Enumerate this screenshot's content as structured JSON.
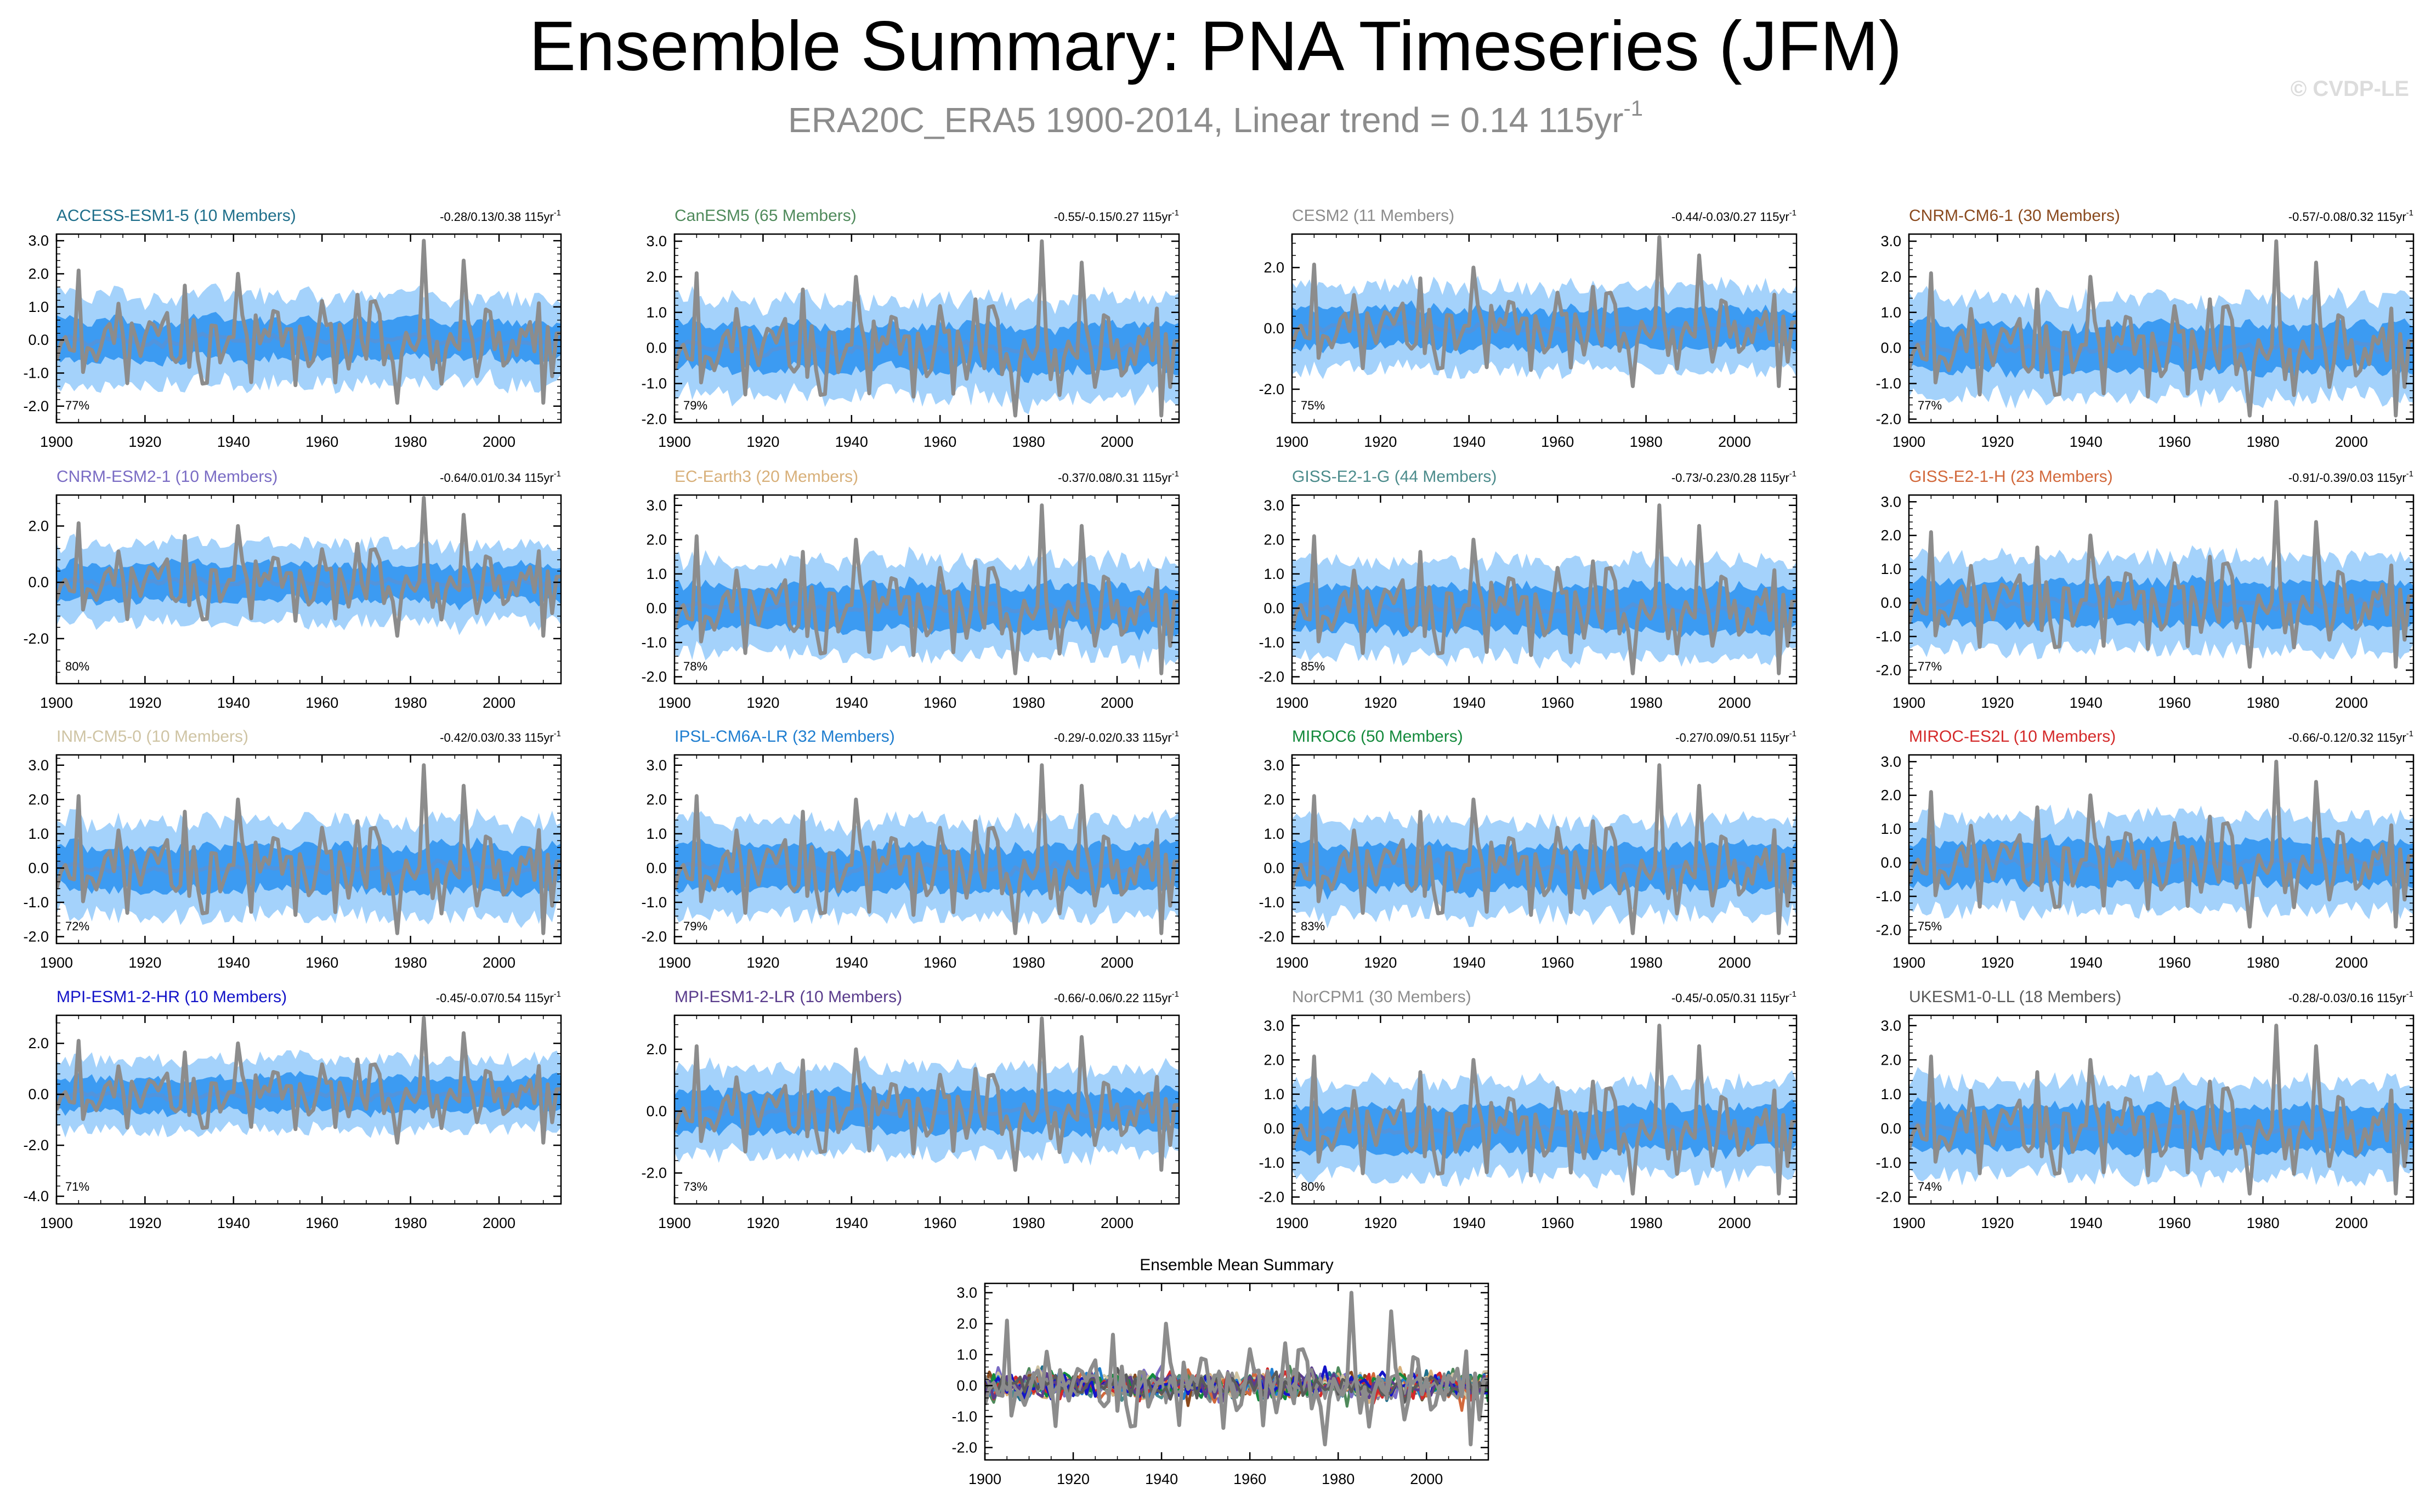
{
  "header": {
    "title": "Ensemble Summary: PNA Timeseries (JFM)",
    "subtitle_main": "ERA20C_ERA5 1900-2014, Linear trend = 0.14 115yr",
    "subtitle_sup": "-1",
    "credit": "© CVDP-LE"
  },
  "colors": {
    "obs": "#8c8c8c",
    "spread_outer": "#a4d2fb",
    "spread_inner": "#3c9bf2",
    "ensemble_mean": "#5294dc"
  },
  "chart_data": [
    {
      "type": "area",
      "model": "ACCESS-ESM1-5",
      "members": "(10 Members)",
      "name_color": "#1f6f8b",
      "trend_text": "-0.28/0.13/0.38 115yr",
      "trend_sup": "-1",
      "pct": "77%",
      "ylim": [
        -2.5,
        3.2
      ],
      "yticks": [
        3.0,
        2.0,
        1.0,
        0.0,
        -1.0,
        -2.0
      ],
      "ytick_labels": [
        "3.0",
        "2.0",
        "1.0",
        "0.0",
        "-1.0",
        "-2.0"
      ],
      "xlim": [
        1900,
        2014
      ],
      "xticks": [
        1900,
        1920,
        1940,
        1960,
        1980,
        2000
      ],
      "xtick_labels": [
        "1900",
        "1920",
        "1940",
        "1960",
        "1980",
        "2000"
      ],
      "inner": 0.5,
      "outer": 1.25
    },
    {
      "type": "area",
      "model": "CanESM5",
      "members": "(65 Members)",
      "name_color": "#4f8a5b",
      "trend_text": "-0.55/-0.15/0.27 115yr",
      "trend_sup": "-1",
      "pct": "79%",
      "ylim": [
        -2.1,
        3.2
      ],
      "yticks": [
        3.0,
        2.0,
        1.0,
        0.0,
        -1.0,
        -2.0
      ],
      "ytick_labels": [
        "3.0",
        "2.0",
        "1.0",
        "0.0",
        "-1.0",
        "-2.0"
      ],
      "xlim": [
        1900,
        2014
      ],
      "xticks": [
        1900,
        1920,
        1940,
        1960,
        1980,
        2000
      ],
      "xtick_labels": [
        "1900",
        "1920",
        "1940",
        "1960",
        "1980",
        "2000"
      ],
      "inner": 0.55,
      "outer": 1.3
    },
    {
      "type": "area",
      "model": "CESM2",
      "members": "(11 Members)",
      "name_color": "#8c8c8c",
      "trend_text": "-0.44/-0.03/0.27 115yr",
      "trend_sup": "-1",
      "pct": "75%",
      "ylim": [
        -3.1,
        3.1
      ],
      "yticks": [
        2.0,
        0.0,
        -2.0
      ],
      "ytick_labels": [
        "2.0",
        "0.0",
        "-2.0"
      ],
      "xlim": [
        1900,
        2014
      ],
      "xticks": [
        1900,
        1920,
        1940,
        1960,
        1980,
        2000
      ],
      "xtick_labels": [
        "1900",
        "1920",
        "1940",
        "1960",
        "1980",
        "2000"
      ],
      "inner": 0.55,
      "outer": 1.3
    },
    {
      "type": "area",
      "model": "CNRM-CM6-1",
      "members": "(30 Members)",
      "name_color": "#8a4a1e",
      "trend_text": "-0.57/-0.08/0.32 115yr",
      "trend_sup": "-1",
      "pct": "77%",
      "ylim": [
        -2.1,
        3.2
      ],
      "yticks": [
        3.0,
        2.0,
        1.0,
        0.0,
        -1.0,
        -2.0
      ],
      "ytick_labels": [
        "3.0",
        "2.0",
        "1.0",
        "0.0",
        "-1.0",
        "-2.0"
      ],
      "xlim": [
        1900,
        2014
      ],
      "xticks": [
        1900,
        1920,
        1940,
        1960,
        1980,
        2000
      ],
      "xtick_labels": [
        "1900",
        "1920",
        "1940",
        "1960",
        "1980",
        "2000"
      ],
      "inner": 0.55,
      "outer": 1.3
    },
    {
      "type": "area",
      "model": "CNRM-ESM2-1",
      "members": "(10 Members)",
      "name_color": "#7a6cc4",
      "trend_text": "-0.64/0.01/0.34 115yr",
      "trend_sup": "-1",
      "pct": "80%",
      "ylim": [
        -3.6,
        3.1
      ],
      "yticks": [
        2.0,
        0.0,
        -2.0
      ],
      "ytick_labels": [
        "2.0",
        "0.0",
        "-2.0"
      ],
      "xlim": [
        1900,
        2014
      ],
      "xticks": [
        1900,
        1920,
        1940,
        1960,
        1980,
        2000
      ],
      "xtick_labels": [
        "1900",
        "1920",
        "1940",
        "1960",
        "1980",
        "2000"
      ],
      "inner": 0.55,
      "outer": 1.3
    },
    {
      "type": "area",
      "model": "EC-Earth3",
      "members": "(20 Members)",
      "name_color": "#d8b07a",
      "trend_text": "-0.37/0.08/0.31 115yr",
      "trend_sup": "-1",
      "pct": "78%",
      "ylim": [
        -2.2,
        3.3
      ],
      "yticks": [
        3.0,
        2.0,
        1.0,
        0.0,
        -1.0,
        -2.0
      ],
      "ytick_labels": [
        "3.0",
        "2.0",
        "1.0",
        "0.0",
        "-1.0",
        "-2.0"
      ],
      "xlim": [
        1900,
        2014
      ],
      "xticks": [
        1900,
        1920,
        1940,
        1960,
        1980,
        2000
      ],
      "xtick_labels": [
        "1900",
        "1920",
        "1940",
        "1960",
        "1980",
        "2000"
      ],
      "inner": 0.55,
      "outer": 1.3
    },
    {
      "type": "area",
      "model": "GISS-E2-1-G",
      "members": "(44 Members)",
      "name_color": "#4c8c8c",
      "trend_text": "-0.73/-0.23/0.28 115yr",
      "trend_sup": "-1",
      "pct": "85%",
      "ylim": [
        -2.2,
        3.3
      ],
      "yticks": [
        3.0,
        2.0,
        1.0,
        0.0,
        -1.0,
        -2.0
      ],
      "ytick_labels": [
        "3.0",
        "2.0",
        "1.0",
        "0.0",
        "-1.0",
        "-2.0"
      ],
      "xlim": [
        1900,
        2014
      ],
      "xticks": [
        1900,
        1920,
        1940,
        1960,
        1980,
        2000
      ],
      "xtick_labels": [
        "1900",
        "1920",
        "1940",
        "1960",
        "1980",
        "2000"
      ],
      "inner": 0.55,
      "outer": 1.3
    },
    {
      "type": "area",
      "model": "GISS-E2-1-H",
      "members": "(23 Members)",
      "name_color": "#d2693c",
      "trend_text": "-0.91/-0.39/0.03 115yr",
      "trend_sup": "-1",
      "pct": "77%",
      "ylim": [
        -2.4,
        3.2
      ],
      "yticks": [
        3.0,
        2.0,
        1.0,
        0.0,
        -1.0,
        -2.0
      ],
      "ytick_labels": [
        "3.0",
        "2.0",
        "1.0",
        "0.0",
        "-1.0",
        "-2.0"
      ],
      "xlim": [
        1900,
        2014
      ],
      "xticks": [
        1900,
        1920,
        1940,
        1960,
        1980,
        2000
      ],
      "xtick_labels": [
        "1900",
        "1920",
        "1940",
        "1960",
        "1980",
        "2000"
      ],
      "inner": 0.55,
      "outer": 1.3
    },
    {
      "type": "area",
      "model": "INM-CM5-0",
      "members": "(10 Members)",
      "name_color": "#cfc4a4",
      "trend_text": "-0.42/0.03/0.33 115yr",
      "trend_sup": "-1",
      "pct": "72%",
      "ylim": [
        -2.2,
        3.3
      ],
      "yticks": [
        3.0,
        2.0,
        1.0,
        0.0,
        -1.0,
        -2.0
      ],
      "ytick_labels": [
        "3.0",
        "2.0",
        "1.0",
        "0.0",
        "-1.0",
        "-2.0"
      ],
      "xlim": [
        1900,
        2014
      ],
      "xticks": [
        1900,
        1920,
        1940,
        1960,
        1980,
        2000
      ],
      "xtick_labels": [
        "1900",
        "1920",
        "1940",
        "1960",
        "1980",
        "2000"
      ],
      "inner": 0.55,
      "outer": 1.3
    },
    {
      "type": "area",
      "model": "IPSL-CM6A-LR",
      "members": "(32 Members)",
      "name_color": "#1f7ed0",
      "trend_text": "-0.29/-0.02/0.33 115yr",
      "trend_sup": "-1",
      "pct": "79%",
      "ylim": [
        -2.2,
        3.3
      ],
      "yticks": [
        3.0,
        2.0,
        1.0,
        0.0,
        -1.0,
        -2.0
      ],
      "ytick_labels": [
        "3.0",
        "2.0",
        "1.0",
        "0.0",
        "-1.0",
        "-2.0"
      ],
      "xlim": [
        1900,
        2014
      ],
      "xticks": [
        1900,
        1920,
        1940,
        1960,
        1980,
        2000
      ],
      "xtick_labels": [
        "1900",
        "1920",
        "1940",
        "1960",
        "1980",
        "2000"
      ],
      "inner": 0.55,
      "outer": 1.3
    },
    {
      "type": "area",
      "model": "MIROC6",
      "members": "(50 Members)",
      "name_color": "#148a3c",
      "trend_text": "-0.27/0.09/0.51 115yr",
      "trend_sup": "-1",
      "pct": "83%",
      "ylim": [
        -2.2,
        3.3
      ],
      "yticks": [
        3.0,
        2.0,
        1.0,
        0.0,
        -1.0,
        -2.0
      ],
      "ytick_labels": [
        "3.0",
        "2.0",
        "1.0",
        "0.0",
        "-1.0",
        "-2.0"
      ],
      "xlim": [
        1900,
        2014
      ],
      "xticks": [
        1900,
        1920,
        1940,
        1960,
        1980,
        2000
      ],
      "xtick_labels": [
        "1900",
        "1920",
        "1940",
        "1960",
        "1980",
        "2000"
      ],
      "inner": 0.55,
      "outer": 1.3
    },
    {
      "type": "area",
      "model": "MIROC-ES2L",
      "members": "(10 Members)",
      "name_color": "#d42a2a",
      "trend_text": "-0.66/-0.12/0.32 115yr",
      "trend_sup": "-1",
      "pct": "75%",
      "ylim": [
        -2.4,
        3.2
      ],
      "yticks": [
        3.0,
        2.0,
        1.0,
        0.0,
        -1.0,
        -2.0
      ],
      "ytick_labels": [
        "3.0",
        "2.0",
        "1.0",
        "0.0",
        "-1.0",
        "-2.0"
      ],
      "xlim": [
        1900,
        2014
      ],
      "xticks": [
        1900,
        1920,
        1940,
        1960,
        1980,
        2000
      ],
      "xtick_labels": [
        "1900",
        "1920",
        "1940",
        "1960",
        "1980",
        "2000"
      ],
      "inner": 0.55,
      "outer": 1.3
    },
    {
      "type": "area",
      "model": "MPI-ESM1-2-HR",
      "members": "(10 Members)",
      "name_color": "#1414c8",
      "trend_text": "-0.45/-0.07/0.54 115yr",
      "trend_sup": "-1",
      "pct": "71%",
      "ylim": [
        -4.3,
        3.1
      ],
      "yticks": [
        2.0,
        0.0,
        -2.0,
        -4.0
      ],
      "ytick_labels": [
        "2.0",
        "0.0",
        "-2.0",
        "-4.0"
      ],
      "xlim": [
        1900,
        2014
      ],
      "xticks": [
        1900,
        1920,
        1940,
        1960,
        1980,
        2000
      ],
      "xtick_labels": [
        "1900",
        "1920",
        "1940",
        "1960",
        "1980",
        "2000"
      ],
      "inner": 0.55,
      "outer": 1.3
    },
    {
      "type": "area",
      "model": "MPI-ESM1-2-LR",
      "members": "(10 Members)",
      "name_color": "#5a3c8c",
      "trend_text": "-0.66/-0.06/0.22 115yr",
      "trend_sup": "-1",
      "pct": "73%",
      "ylim": [
        -3.0,
        3.1
      ],
      "yticks": [
        2.0,
        0.0,
        -2.0
      ],
      "ytick_labels": [
        "2.0",
        "0.0",
        "-2.0"
      ],
      "xlim": [
        1900,
        2014
      ],
      "xticks": [
        1900,
        1920,
        1940,
        1960,
        1980,
        2000
      ],
      "xtick_labels": [
        "1900",
        "1920",
        "1940",
        "1960",
        "1980",
        "2000"
      ],
      "inner": 0.55,
      "outer": 1.3
    },
    {
      "type": "area",
      "model": "NorCPM1",
      "members": "(30 Members)",
      "name_color": "#8c8c8c",
      "trend_text": "-0.45/-0.05/0.31 115yr",
      "trend_sup": "-1",
      "pct": "80%",
      "ylim": [
        -2.2,
        3.3
      ],
      "yticks": [
        3.0,
        2.0,
        1.0,
        0.0,
        -1.0,
        -2.0
      ],
      "ytick_labels": [
        "3.0",
        "2.0",
        "1.0",
        "0.0",
        "-1.0",
        "-2.0"
      ],
      "xlim": [
        1900,
        2014
      ],
      "xticks": [
        1900,
        1920,
        1940,
        1960,
        1980,
        2000
      ],
      "xtick_labels": [
        "1900",
        "1920",
        "1940",
        "1960",
        "1980",
        "2000"
      ],
      "inner": 0.55,
      "outer": 1.3
    },
    {
      "type": "area",
      "model": "UKESM1-0-LL",
      "members": "(18 Members)",
      "name_color": "#5a5a5a",
      "trend_text": "-0.28/-0.03/0.16 115yr",
      "trend_sup": "-1",
      "pct": "74%",
      "ylim": [
        -2.2,
        3.3
      ],
      "yticks": [
        3.0,
        2.0,
        1.0,
        0.0,
        -1.0,
        -2.0
      ],
      "ytick_labels": [
        "3.0",
        "2.0",
        "1.0",
        "0.0",
        "-1.0",
        "-2.0"
      ],
      "xlim": [
        1900,
        2014
      ],
      "xticks": [
        1900,
        1920,
        1940,
        1960,
        1980,
        2000
      ],
      "xtick_labels": [
        "1900",
        "1920",
        "1940",
        "1960",
        "1980",
        "2000"
      ],
      "inner": 0.55,
      "outer": 1.3
    },
    {
      "type": "line",
      "summary": true,
      "title": "Ensemble Mean Summary",
      "ylim": [
        -2.4,
        3.3
      ],
      "yticks": [
        3.0,
        2.0,
        1.0,
        0.0,
        -1.0,
        -2.0
      ],
      "ytick_labels": [
        "3.0",
        "2.0",
        "1.0",
        "0.0",
        "-1.0",
        "-2.0"
      ],
      "xlim": [
        1900,
        2014
      ],
      "xticks": [
        1900,
        1920,
        1940,
        1960,
        1980,
        2000
      ],
      "xtick_labels": [
        "1900",
        "1920",
        "1940",
        "1960",
        "1980",
        "2000"
      ]
    }
  ]
}
